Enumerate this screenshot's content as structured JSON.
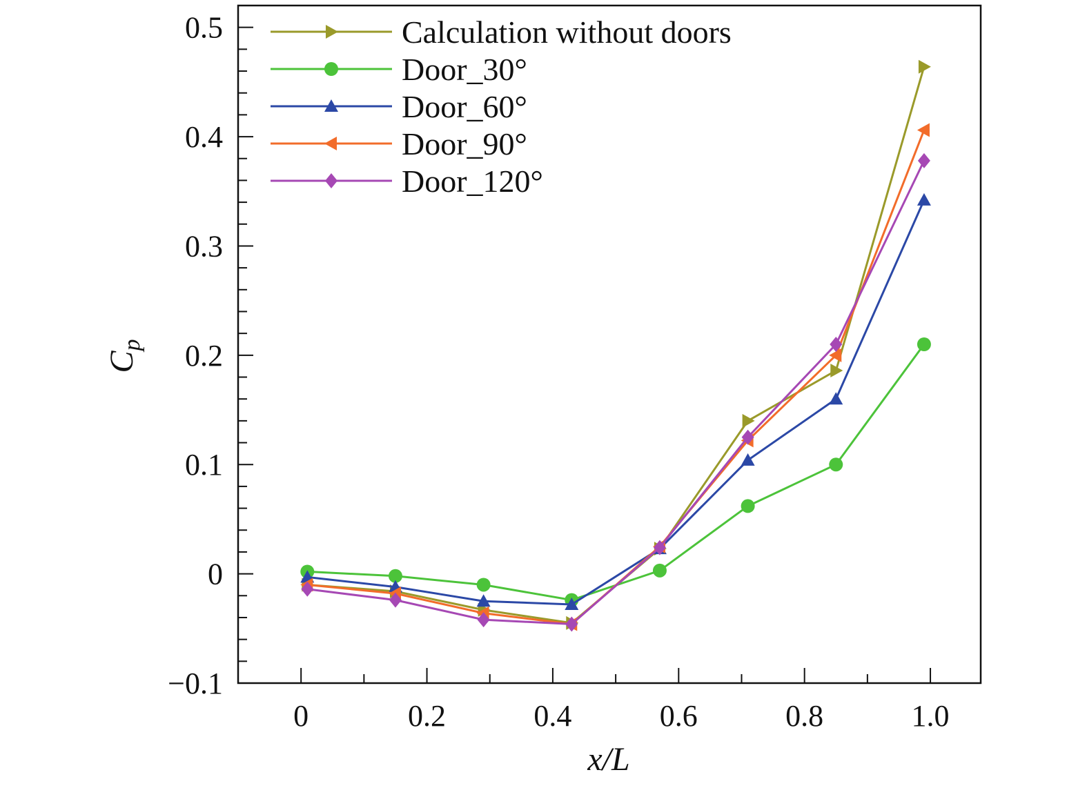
{
  "chart_data": {
    "type": "line",
    "title": "",
    "xlabel": "x/L",
    "ylabel_main": "C",
    "ylabel_sub": "p",
    "xlim": [
      -0.1,
      1.08
    ],
    "ylim": [
      -0.1,
      0.52
    ],
    "x_ticks": [
      {
        "v": 0,
        "label": "0"
      },
      {
        "v": 0.2,
        "label": "0.2"
      },
      {
        "v": 0.4,
        "label": "0.4"
      },
      {
        "v": 0.6,
        "label": "0.6"
      },
      {
        "v": 0.8,
        "label": "0.8"
      },
      {
        "v": 1.0,
        "label": "1.0"
      }
    ],
    "y_ticks": [
      {
        "v": -0.1,
        "label": "−0.1"
      },
      {
        "v": 0,
        "label": "0"
      },
      {
        "v": 0.1,
        "label": "0.1"
      },
      {
        "v": 0.2,
        "label": "0.2"
      },
      {
        "v": 0.3,
        "label": "0.3"
      },
      {
        "v": 0.4,
        "label": "0.4"
      },
      {
        "v": 0.5,
        "label": "0.5"
      }
    ],
    "x_minor_step": 0.1,
    "y_minor_step": 0.02,
    "x": [
      0.01,
      0.15,
      0.29,
      0.43,
      0.57,
      0.71,
      0.85,
      0.99
    ],
    "legend_position": "top-left",
    "series": [
      {
        "name": "Calculation without doors",
        "color": "#9a9a2a",
        "marker": "triangle-right",
        "values": [
          -0.01,
          -0.016,
          -0.033,
          -0.045,
          0.023,
          0.14,
          0.186,
          0.464
        ]
      },
      {
        "name": "Door_30°",
        "color": "#4cc33a",
        "marker": "circle",
        "values": [
          0.002,
          -0.002,
          -0.01,
          -0.024,
          0.003,
          0.062,
          0.1,
          0.21
        ]
      },
      {
        "name": "Door_60°",
        "color": "#2b48a6",
        "marker": "triangle-up",
        "values": [
          -0.003,
          -0.012,
          -0.025,
          -0.028,
          0.023,
          0.104,
          0.16,
          0.342
        ]
      },
      {
        "name": "Door_90°",
        "color": "#f26c2a",
        "marker": "triangle-left",
        "values": [
          -0.01,
          -0.018,
          -0.036,
          -0.046,
          0.025,
          0.122,
          0.2,
          0.406
        ]
      },
      {
        "name": "Door_120°",
        "color": "#a648b4",
        "marker": "diamond",
        "values": [
          -0.014,
          -0.024,
          -0.042,
          -0.046,
          0.024,
          0.125,
          0.21,
          0.378
        ]
      }
    ]
  }
}
